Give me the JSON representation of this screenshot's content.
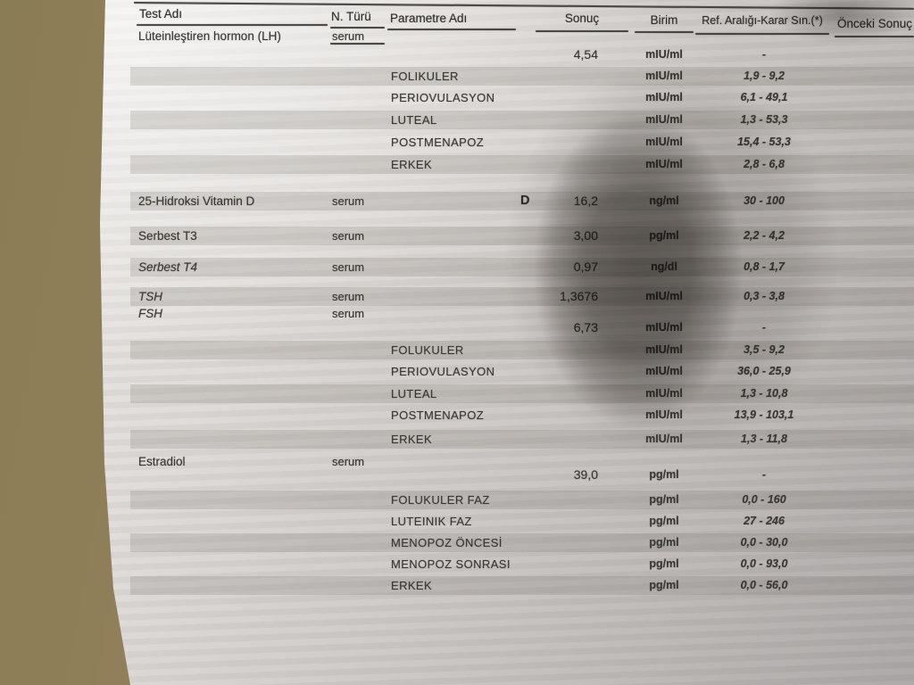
{
  "report": {
    "headers": {
      "test": "Test Adı",
      "sample_type": "N. Türü",
      "parameter": "Parametre Adı",
      "result": "Sonuç",
      "unit": "Birim",
      "ref_range": "Ref. Aralığı-Karar Sın.(*)",
      "previous_result": "Önceki Sonuç"
    },
    "rows": [
      {
        "test": "Lüteinleştiren hormon (LH)",
        "sample": "serum"
      },
      {
        "result": "4,54",
        "unit": "mIU/ml",
        "ref": "-"
      },
      {
        "param": "FOLIKULER",
        "unit": "mIU/ml",
        "ref": "1,9 - 9,2"
      },
      {
        "param": "PERIOVULASYON",
        "unit": "mIU/ml",
        "ref": "6,1 - 49,1"
      },
      {
        "param": "LUTEAL",
        "unit": "mIU/ml",
        "ref": "1,3 - 53,3"
      },
      {
        "param": "POSTMENAPOZ",
        "unit": "mIU/ml",
        "ref": "15,4 - 53,3"
      },
      {
        "param": "ERKEK",
        "unit": "mIU/ml",
        "ref": "2,8 - 6,8"
      },
      {
        "test": "25-Hidroksi Vitamin D",
        "sample": "serum",
        "flag": "D",
        "result": "16,2",
        "unit": "ng/ml",
        "ref": "30 - 100"
      },
      {
        "test": "Serbest T3",
        "sample": "serum",
        "result": "3,00",
        "unit": "pg/ml",
        "ref": "2,2 - 4,2"
      },
      {
        "test": "Serbest T4",
        "sample": "serum",
        "result": "0,97",
        "unit": "ng/dl",
        "ref": "0,8 - 1,7"
      },
      {
        "test": "TSH",
        "sample": "serum",
        "result": "1,3676",
        "unit": "mIU/ml",
        "ref": "0,3 - 3,8"
      },
      {
        "test": "FSH",
        "sample": "serum"
      },
      {
        "result": "6,73",
        "unit": "mIU/ml",
        "ref": "-"
      },
      {
        "param": "FOLUKULER",
        "unit": "mIU/ml",
        "ref": "3,5 - 9,2"
      },
      {
        "param": "PERIOVULASYON",
        "unit": "mIU/ml",
        "ref": "36,0 - 25,9"
      },
      {
        "param": "LUTEAL",
        "unit": "mIU/ml",
        "ref": "1,3 - 10,8"
      },
      {
        "param": "POSTMENAPOZ",
        "unit": "mIU/ml",
        "ref": "13,9 - 103,1"
      },
      {
        "param": "ERKEK",
        "unit": "mIU/ml",
        "ref": "1,3 - 11,8"
      },
      {
        "test": "Estradiol",
        "sample": "serum"
      },
      {
        "result": "39,0",
        "unit": "pg/ml",
        "ref": "-"
      },
      {
        "param": "FOLUKULER FAZ",
        "unit": "pg/ml",
        "ref": "0,0 - 160"
      },
      {
        "param": "LUTEINIK FAZ",
        "unit": "pg/ml",
        "ref": "27 - 246"
      },
      {
        "param": "MENOPOZ ÖNCESİ",
        "unit": "pg/ml",
        "ref": "0,0 - 30,0"
      },
      {
        "param": "MENOPOZ SONRASI",
        "unit": "pg/ml",
        "ref": "0,0 - 93,0"
      },
      {
        "param": "ERKEK",
        "unit": "pg/ml",
        "ref": "0,0 - 56,0"
      }
    ],
    "colors": {
      "paper_light": "#efedea",
      "paper_dark": "#aba7a6",
      "bedsheet": "#8a7c55",
      "ink": "#3a3833",
      "row_shade": "rgba(116,110,102,0.20)"
    }
  }
}
